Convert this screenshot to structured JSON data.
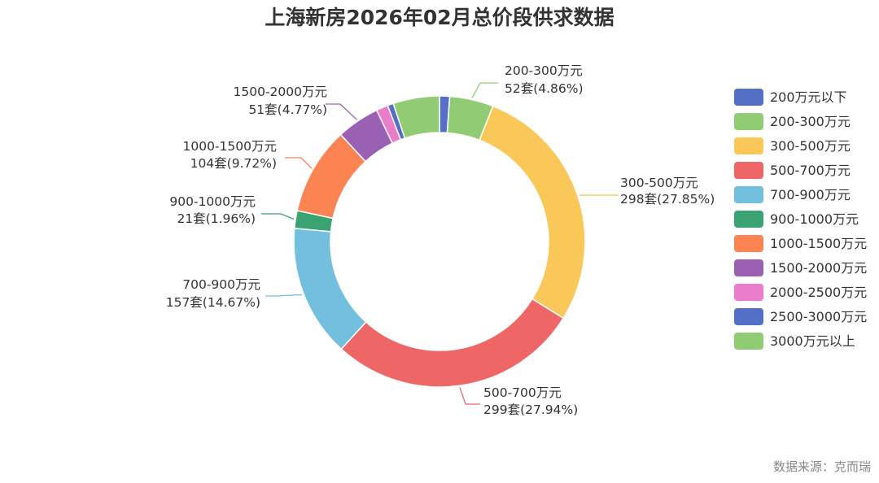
{
  "title": "上海新房2026年02月总价段供求数据",
  "source": "数据来源：克而瑞",
  "chart_data": {
    "type": "pie",
    "donut": true,
    "title": "上海新房2026年02月总价段供求数据",
    "legend_position": "right",
    "unit": "套",
    "slices": [
      {
        "name": "200万元以下",
        "value": 12,
        "percent": 1.12,
        "color": "#5470c6",
        "label": false
      },
      {
        "name": "200-300万元",
        "value": 52,
        "percent": 4.86,
        "color": "#91cc75",
        "label": true
      },
      {
        "name": "300-500万元",
        "value": 298,
        "percent": 27.85,
        "color": "#fac858",
        "label": true
      },
      {
        "name": "500-700万元",
        "value": 299,
        "percent": 27.94,
        "color": "#ee6666",
        "label": true
      },
      {
        "name": "700-900万元",
        "value": 157,
        "percent": 14.67,
        "color": "#73c0de",
        "label": true
      },
      {
        "name": "900-1000万元",
        "value": 21,
        "percent": 1.96,
        "color": "#3ba272",
        "label": true
      },
      {
        "name": "1000-1500万元",
        "value": 104,
        "percent": 9.72,
        "color": "#fc8452",
        "label": true
      },
      {
        "name": "1500-2000万元",
        "value": 51,
        "percent": 4.77,
        "color": "#9a60b4",
        "label": true
      },
      {
        "name": "2000-2500万元",
        "value": 14,
        "percent": 1.31,
        "color": "#ea7ccc",
        "label": false
      },
      {
        "name": "2500-3000万元",
        "value": 7,
        "percent": 0.65,
        "color": "#5470c6",
        "label": false
      },
      {
        "name": "3000万元以上",
        "value": 55,
        "percent": 5.14,
        "color": "#91cc75",
        "label": false
      }
    ]
  }
}
